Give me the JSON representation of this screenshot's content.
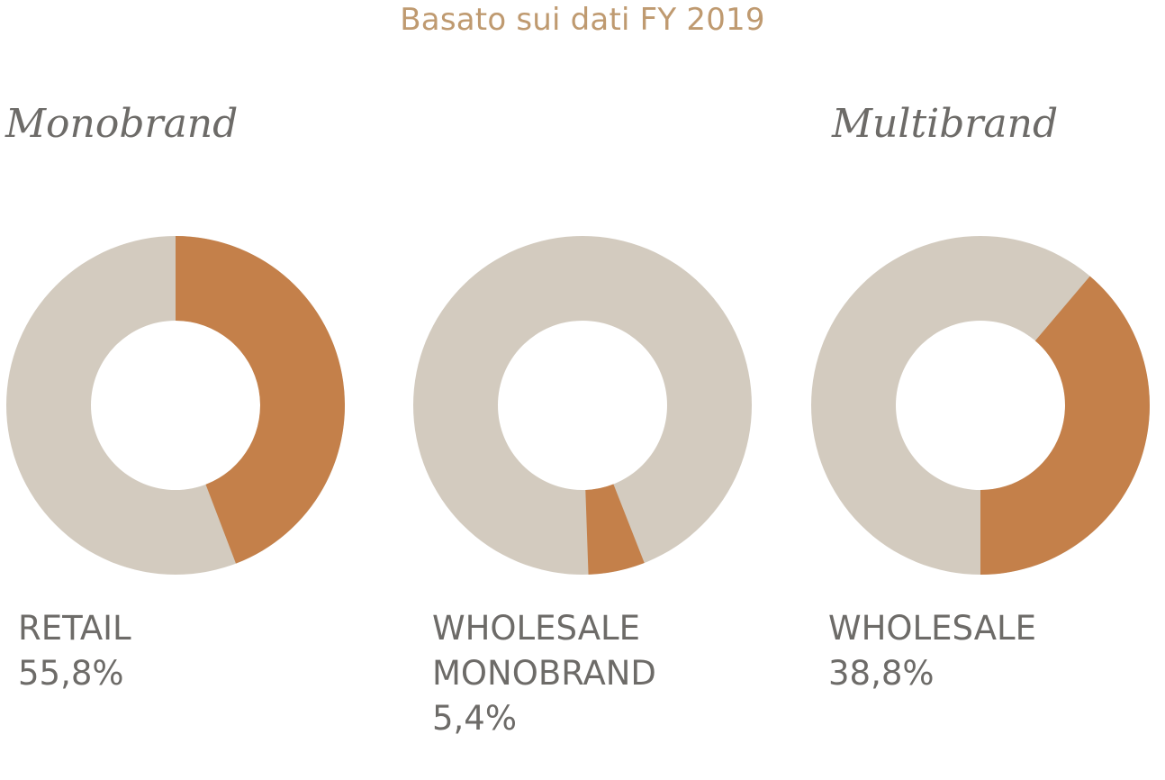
{
  "chart_data": {
    "type": "pie",
    "style": "donut",
    "subtitle": "Basato sui dati FY 2019",
    "groups": [
      "Monobrand",
      "Multibrand"
    ],
    "colors": {
      "highlight": "#c4804a",
      "rest": "#d3cbbf",
      "text": "#6d6b68",
      "subtitle": "#bf9a70"
    },
    "charts": [
      {
        "label_lines": [
          "RETAIL"
        ],
        "value_label": "55,8%",
        "value": 55.8,
        "group": "Monobrand"
      },
      {
        "label_lines": [
          "WHOLESALE",
          "MONOBRAND"
        ],
        "value_label": "5,4%",
        "value": 5.4,
        "group": "Monobrand"
      },
      {
        "label_lines": [
          "WHOLESALE"
        ],
        "value_label": "38,8%",
        "value": 38.8,
        "group": "Multibrand"
      }
    ]
  }
}
